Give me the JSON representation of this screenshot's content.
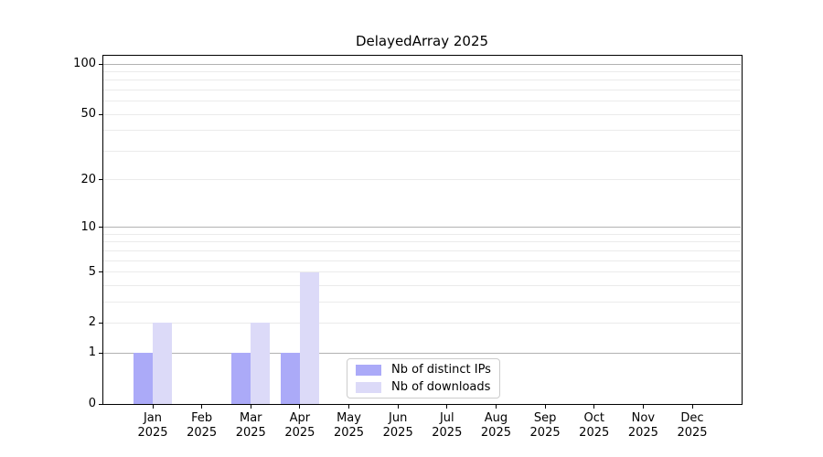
{
  "chart_data": {
    "type": "bar",
    "title": "DelayedArray 2025",
    "categories": [
      "Jan",
      "Feb",
      "Mar",
      "Apr",
      "May",
      "Jun",
      "Jul",
      "Aug",
      "Sep",
      "Oct",
      "Nov",
      "Dec"
    ],
    "category_year_label": "2025",
    "series": [
      {
        "name": "Nb of distinct IPs",
        "color": "#abaaf8",
        "values": [
          1,
          0,
          1,
          1,
          0,
          0,
          0,
          0,
          0,
          0,
          0,
          0
        ]
      },
      {
        "name": "Nb of downloads",
        "color": "#dcdaf8",
        "values": [
          2,
          0,
          2,
          5,
          0,
          0,
          0,
          0,
          0,
          0,
          0,
          0
        ]
      }
    ],
    "xlabel": "",
    "ylabel": "",
    "y_scale": "log1p",
    "y_tick_labels": [
      0,
      1,
      2,
      5,
      10,
      20,
      50,
      100
    ],
    "ylim": [
      0,
      113
    ],
    "grid": {
      "orientation": "horizontal",
      "major_values": [
        1,
        10,
        100
      ],
      "minor_values": [
        2,
        3,
        4,
        5,
        6,
        7,
        8,
        9,
        20,
        30,
        40,
        50,
        60,
        70,
        80,
        90
      ],
      "major_color": "#b2b2b2",
      "minor_color": "#ebebeb"
    },
    "legend_position": "lower center",
    "spine_color": "#000000",
    "background_color": "#ffffff"
  }
}
